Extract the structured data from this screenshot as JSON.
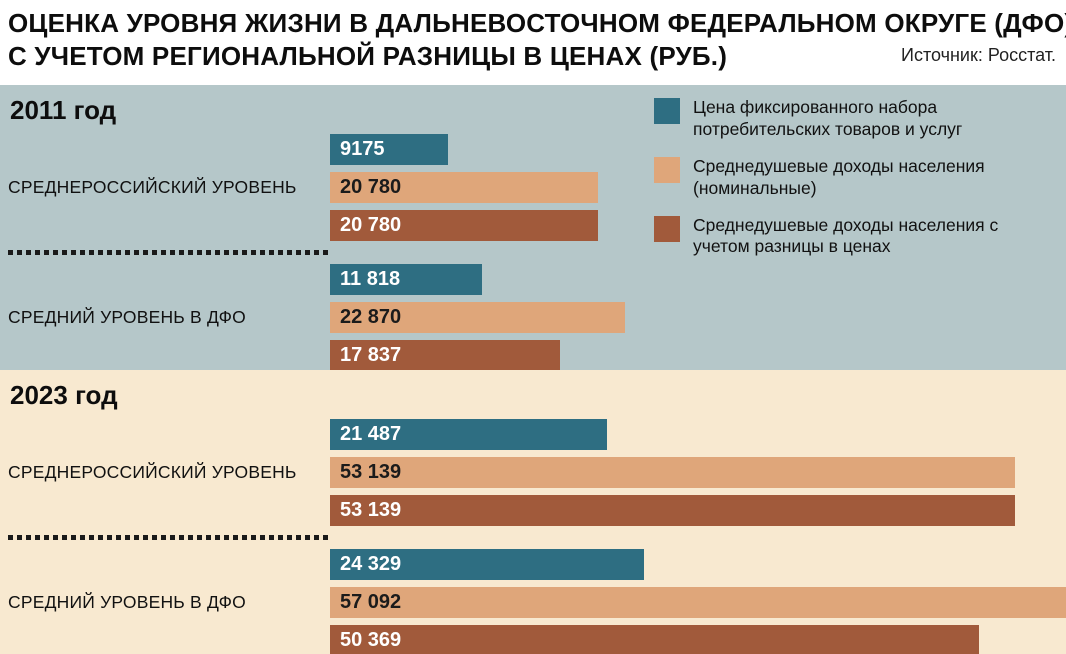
{
  "header": {
    "title_line1": "ОЦЕНКА УРОВНЯ ЖИЗНИ В ДАЛЬНЕВОСТОЧНОМ ФЕДЕРАЛЬНОМ ОКРУГЕ (ДФО)",
    "title_line2": "С УЧЕТОМ РЕГИОНАЛЬНОЙ РАЗНИЦЫ В ЦЕНАХ (РУБ.)",
    "source": "Источник: Росстат."
  },
  "colors": {
    "section_2011_bg": "#b5c7c9",
    "section_2023_bg": "#f8e9d0",
    "series_fixed_set": "#2e6e82",
    "series_nominal_income": "#dfa67a",
    "series_adjusted_income": "#a15a3b",
    "title_text": "#0d0d0d",
    "bar_label_light": "#ffffff",
    "bar_label_dark": "#1b1b1b"
  },
  "chart_data": {
    "type": "bar",
    "orientation": "horizontal",
    "title": "ОЦЕНКА УРОВНЯ ЖИЗНИ В ДАЛЬНЕВОСТОЧНОМ ФЕДЕРАЛЬНОМ ОКРУГЕ (ДФО) С УЧЕТОМ РЕГИОНАЛЬНОЙ РАЗНИЦЫ В ЦЕНАХ (РУБ.)",
    "source": "Источник: Росстат.",
    "unit": "руб.",
    "grid": false,
    "legend_position": "top-right",
    "xmax": 57092,
    "categories": [
      "2011 · СРЕДНЕРОССИЙСКИЙ УРОВЕНЬ",
      "2011 · СРЕДНИЙ УРОВЕНЬ В ДФО",
      "2023 · СРЕДНЕРОССИЙСКИЙ УРОВЕНЬ",
      "2023 · СРЕДНИЙ УРОВЕНЬ В ДФО"
    ],
    "series": [
      {
        "name": "Цена фиксированного набора потребительских товаров и услуг",
        "color": "#2e6e82",
        "values": [
          9175,
          11818,
          21487,
          24329
        ]
      },
      {
        "name": "Среднедушевые доходы населения (номинальные)",
        "color": "#dfa67a",
        "values": [
          20780,
          22870,
          53139,
          57092
        ]
      },
      {
        "name": "Среднедушевые доходы населения с учетом разницы в ценах",
        "color": "#a15a3b",
        "values": [
          20780,
          17837,
          53139,
          50369
        ]
      }
    ]
  },
  "sections": [
    {
      "year_label": "2011 год",
      "groups": [
        {
          "label": "СРЕДНЕРОССИЙСКИЙ УРОВЕНЬ",
          "bars": [
            {
              "display": "9175"
            },
            {
              "display": "20 780"
            },
            {
              "display": "20 780"
            }
          ]
        },
        {
          "label": "СРЕДНИЙ УРОВЕНЬ В ДФО",
          "bars": [
            {
              "display": "11 818"
            },
            {
              "display": "22 870"
            },
            {
              "display": "17 837"
            }
          ]
        }
      ]
    },
    {
      "year_label": "2023 год",
      "groups": [
        {
          "label": "СРЕДНЕРОССИЙСКИЙ УРОВЕНЬ",
          "bars": [
            {
              "display": "21 487"
            },
            {
              "display": "53 139"
            },
            {
              "display": "53 139"
            }
          ]
        },
        {
          "label": "СРЕДНИЙ УРОВЕНЬ В ДФО",
          "bars": [
            {
              "display": "24 329"
            },
            {
              "display": "57 092"
            },
            {
              "display": "50 369"
            }
          ]
        }
      ]
    }
  ]
}
